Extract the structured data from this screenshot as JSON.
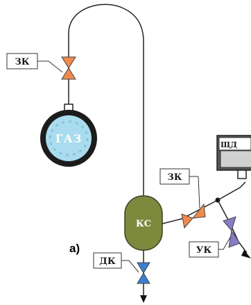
{
  "labels": {
    "zk_top": "ЗК",
    "gas": "ГАЗ",
    "zk_right": "ЗК",
    "shchd": "ЩД",
    "ks": "КС",
    "uk": "УК",
    "dk": "ДК",
    "figure_letter": "а)"
  },
  "colors": {
    "line": "#222222",
    "valve_orange": "#f08a4b",
    "valve_blue": "#3b7fd1",
    "valve_purple": "#8b7ac8",
    "gas_fill": "#a9dcee",
    "gas_ring": "#1c1c1c",
    "ks_fill": "#7d8a3e",
    "gauge_fill": "#d0d0d0"
  }
}
